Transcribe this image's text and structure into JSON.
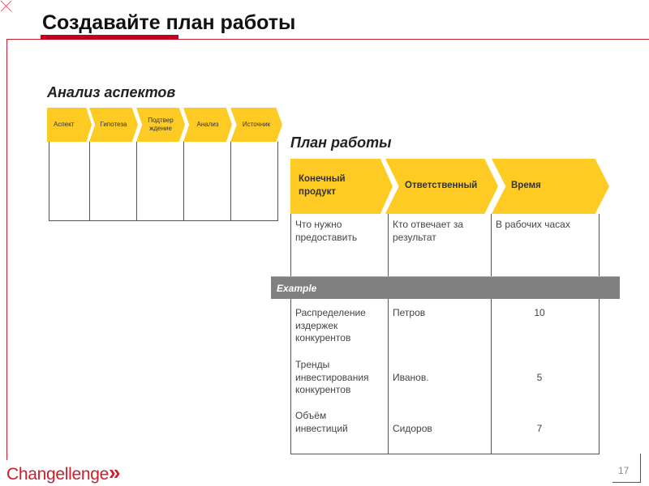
{
  "title": "Создавайте план работы",
  "aspects": {
    "heading": "Анализ аспектов",
    "columns": [
      "Аспект",
      "Гипотеза",
      "Подтвер ждение",
      "Анализ",
      "Источник"
    ]
  },
  "plan": {
    "heading": "План работы",
    "columns": [
      "Конечный продукт",
      "Ответственный",
      "Время"
    ],
    "descriptions": [
      "Что нужно предоставить",
      "Кто отвечает за результат",
      "В рабочих часах"
    ],
    "example_label": "Example",
    "rows": [
      {
        "product": "Распределение издержек конкурентов",
        "owner": "Петров",
        "hours": "10"
      },
      {
        "product": "Тренды инвестирования конкурентов",
        "owner": "Иванов.",
        "hours": "5"
      },
      {
        "product": "Объём инвестиций",
        "owner": "Сидоров",
        "hours": "7"
      }
    ]
  },
  "footer": {
    "logo": "Changellenge",
    "logo_mark": "»",
    "page_number": "17"
  },
  "colors": {
    "accent": "#c8202f",
    "chevron": "#fdcb24",
    "example_bar": "#808080"
  }
}
